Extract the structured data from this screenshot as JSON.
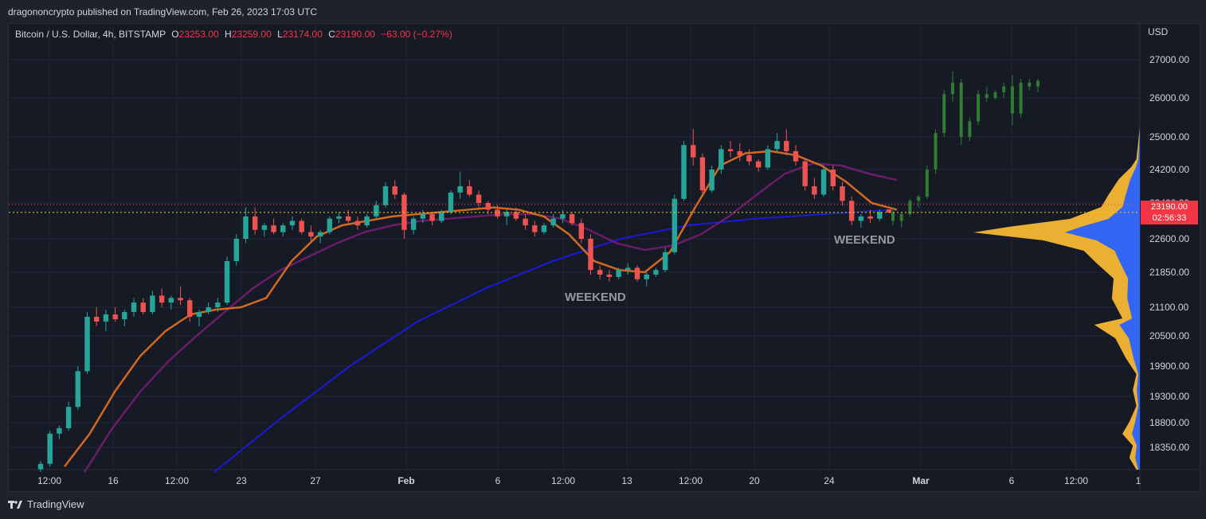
{
  "header": {
    "publisher": "dragononcrypto published on TradingView.com, Feb 26, 2023 17:03 UTC"
  },
  "legend": {
    "symbol": "Bitcoin / U.S. Dollar, 4h, BITSTAMP",
    "open_label": "O",
    "open": "23253.00",
    "high_label": "H",
    "high": "23259.00",
    "low_label": "L",
    "low": "23174.00",
    "close_label": "C",
    "close": "23190.00",
    "change": "−63.00 (−0.27%)"
  },
  "price_axis": {
    "currency": "USD",
    "ticks": [
      "27000.00",
      "26000.00",
      "25000.00",
      "24200.00",
      "23400.00",
      "22600.00",
      "21850.00",
      "21100.00",
      "20500.00",
      "19900.00",
      "19300.00",
      "18800.00",
      "18350.00"
    ]
  },
  "time_axis": {
    "ticks": [
      "12:00",
      "16",
      "12:00",
      "23",
      "27",
      "Feb",
      "6",
      "12:00",
      "13",
      "12:00",
      "20",
      "24",
      "Mar",
      "6",
      "12:00",
      "1"
    ]
  },
  "current_price": {
    "price": "23190.00",
    "countdown": "02:56:33"
  },
  "annotations": [
    "WEEKEND",
    "WEEKEND"
  ],
  "footer": {
    "brand": "TradingView"
  },
  "colors": {
    "up": "#26a69a",
    "down": "#ef5350",
    "ma_fast": "#d2691e",
    "ma_slow": "#6a1b6a",
    "ma_long": "#1a1ad8",
    "vp_up": "#2962ff",
    "vp_down": "#f7b731",
    "projection": "#2e7d32"
  },
  "chart_data": {
    "type": "candlestick",
    "timeframe": "4h",
    "y_scale": "log",
    "ylim": [
      17900,
      27600
    ],
    "grid": true,
    "candles": [
      [
        17950,
        18100,
        17900,
        18050
      ],
      [
        18050,
        18650,
        18000,
        18600
      ],
      [
        18600,
        18750,
        18500,
        18700
      ],
      [
        18700,
        19200,
        18650,
        19100
      ],
      [
        19100,
        19900,
        19050,
        19800
      ],
      [
        19800,
        21000,
        19750,
        20900
      ],
      [
        20900,
        21100,
        20700,
        20800
      ],
      [
        20800,
        21050,
        20600,
        20950
      ],
      [
        20950,
        21100,
        20800,
        20850
      ],
      [
        20850,
        21050,
        20700,
        21000
      ],
      [
        21000,
        21300,
        20900,
        21200
      ],
      [
        21200,
        21300,
        20950,
        21000
      ],
      [
        21000,
        21450,
        20950,
        21350
      ],
      [
        21350,
        21500,
        21100,
        21200
      ],
      [
        21200,
        21350,
        21050,
        21300
      ],
      [
        21300,
        21550,
        21150,
        21250
      ],
      [
        21250,
        21300,
        20800,
        20900
      ],
      [
        20900,
        21050,
        20700,
        21000
      ],
      [
        21000,
        21200,
        20950,
        21100
      ],
      [
        21100,
        21300,
        21000,
        21200
      ],
      [
        21200,
        22200,
        21150,
        22100
      ],
      [
        22100,
        22700,
        22000,
        22600
      ],
      [
        22600,
        23300,
        22500,
        23100
      ],
      [
        23100,
        23300,
        22700,
        22800
      ],
      [
        22800,
        22950,
        22650,
        22900
      ],
      [
        22900,
        23050,
        22700,
        22750
      ],
      [
        22750,
        22950,
        22650,
        22900
      ],
      [
        22900,
        23100,
        22800,
        23000
      ],
      [
        23000,
        23050,
        22700,
        22750
      ],
      [
        22750,
        22900,
        22500,
        22650
      ],
      [
        22650,
        22800,
        22500,
        22750
      ],
      [
        22750,
        23100,
        22700,
        23050
      ],
      [
        23050,
        23200,
        22950,
        23100
      ],
      [
        23100,
        23250,
        22950,
        23000
      ],
      [
        23000,
        23100,
        22800,
        22900
      ],
      [
        22900,
        23150,
        22850,
        23100
      ],
      [
        23100,
        23450,
        23050,
        23350
      ],
      [
        23350,
        23900,
        23300,
        23800
      ],
      [
        23800,
        23950,
        23500,
        23600
      ],
      [
        23600,
        23650,
        22600,
        22800
      ],
      [
        22800,
        23100,
        22700,
        23050
      ],
      [
        23050,
        23250,
        22950,
        23150
      ],
      [
        23150,
        23200,
        22900,
        23000
      ],
      [
        23000,
        23250,
        22950,
        23200
      ],
      [
        23200,
        23700,
        23150,
        23650
      ],
      [
        23650,
        24150,
        23500,
        23800
      ],
      [
        23800,
        23950,
        23550,
        23600
      ],
      [
        23600,
        23700,
        23300,
        23400
      ],
      [
        23400,
        23450,
        23150,
        23250
      ],
      [
        23250,
        23350,
        23050,
        23100
      ],
      [
        23100,
        23250,
        22900,
        23200
      ],
      [
        23200,
        23300,
        23000,
        23050
      ],
      [
        23050,
        23150,
        22800,
        22900
      ],
      [
        22900,
        23000,
        22650,
        22750
      ],
      [
        22750,
        22950,
        22700,
        22900
      ],
      [
        22900,
        23150,
        22850,
        23050
      ],
      [
        23050,
        23250,
        22950,
        23150
      ],
      [
        23150,
        23200,
        22900,
        22950
      ],
      [
        22950,
        23050,
        22500,
        22600
      ],
      [
        22600,
        22700,
        21800,
        21900
      ],
      [
        21900,
        22000,
        21700,
        21800
      ],
      [
        21800,
        21900,
        21650,
        21750
      ],
      [
        21750,
        21950,
        21700,
        21900
      ],
      [
        21900,
        22050,
        21800,
        21950
      ],
      [
        21950,
        22000,
        21650,
        21700
      ],
      [
        21700,
        21850,
        21550,
        21800
      ],
      [
        21800,
        21950,
        21750,
        21900
      ],
      [
        21900,
        22400,
        21850,
        22300
      ],
      [
        22300,
        23600,
        22250,
        23500
      ],
      [
        23500,
        24900,
        23450,
        24800
      ],
      [
        24800,
        25200,
        24300,
        24500
      ],
      [
        24500,
        24600,
        23600,
        23700
      ],
      [
        23700,
        24300,
        23650,
        24200
      ],
      [
        24200,
        24800,
        24100,
        24700
      ],
      [
        24700,
        24900,
        24500,
        24650
      ],
      [
        24650,
        24850,
        24400,
        24550
      ],
      [
        24550,
        24700,
        24300,
        24400
      ],
      [
        24400,
        24450,
        24150,
        24250
      ],
      [
        24250,
        24800,
        24200,
        24700
      ],
      [
        24700,
        25100,
        24600,
        24900
      ],
      [
        24900,
        25200,
        24550,
        24650
      ],
      [
        24650,
        24800,
        24300,
        24400
      ],
      [
        24400,
        24450,
        23700,
        23800
      ],
      [
        23800,
        24000,
        23500,
        23600
      ],
      [
        23600,
        24300,
        23550,
        24200
      ],
      [
        24200,
        24300,
        23700,
        23800
      ],
      [
        23800,
        23900,
        23350,
        23450
      ],
      [
        23450,
        23550,
        22900,
        23000
      ],
      [
        23000,
        23150,
        22850,
        23100
      ],
      [
        23100,
        23250,
        22950,
        23050
      ],
      [
        23050,
        23250,
        23000,
        23200
      ],
      [
        23253,
        23259,
        23174,
        23190
      ]
    ],
    "projection": {
      "type": "candlestick",
      "candles": [
        [
          23190,
          23300,
          22900,
          23000
        ],
        [
          23000,
          23200,
          22850,
          23150
        ],
        [
          23150,
          23500,
          23100,
          23450
        ],
        [
          23450,
          23600,
          23300,
          23550
        ],
        [
          23550,
          24300,
          23500,
          24200
        ],
        [
          24200,
          25200,
          24100,
          25100
        ],
        [
          25100,
          26200,
          25000,
          26100
        ],
        [
          26100,
          26700,
          25900,
          26400
        ],
        [
          26400,
          26500,
          24800,
          25000
        ],
        [
          25000,
          25500,
          24900,
          25400
        ],
        [
          25400,
          26200,
          25300,
          26100
        ],
        [
          26100,
          26300,
          25900,
          26000
        ],
        [
          26000,
          26200,
          25950,
          26150
        ],
        [
          26150,
          26400,
          26000,
          26300
        ],
        [
          26300,
          26600,
          25300,
          25600
        ],
        [
          25600,
          26500,
          25500,
          26400
        ],
        [
          26400,
          26500,
          26200,
          26300
        ],
        [
          26300,
          26500,
          26150,
          26450
        ]
      ]
    },
    "moving_averages": [
      {
        "values": [
          18000,
          18600,
          19400,
          20100,
          20600,
          20950,
          21050,
          21100,
          21300,
          22100,
          22650,
          22900,
          23000,
          23100,
          23150,
          23200,
          23250,
          23300,
          23250,
          23100,
          22700,
          22100,
          21900,
          21850,
          22300,
          23300,
          24300,
          24600,
          24650,
          24550,
          24300,
          23900,
          23400,
          23250
        ]
      },
      {
        "values": [
          17900,
          18700,
          19400,
          20000,
          20500,
          21000,
          21500,
          21900,
          22200,
          22500,
          22750,
          22900,
          23000,
          23050,
          23100,
          23150,
          23150,
          23050,
          22800,
          22500,
          22350,
          22450,
          22700,
          23100,
          23600,
          24100,
          24350,
          24300,
          24100,
          23950
        ]
      },
      {
        "values": [
          17900,
          18900,
          19900,
          20800,
          21500,
          22100,
          22600,
          22900,
          23050,
          23150,
          23250
        ]
      }
    ],
    "volume_profile": {
      "up_color": "#2962ff",
      "down_color": "#f7b731",
      "poc_price": 23190
    }
  }
}
